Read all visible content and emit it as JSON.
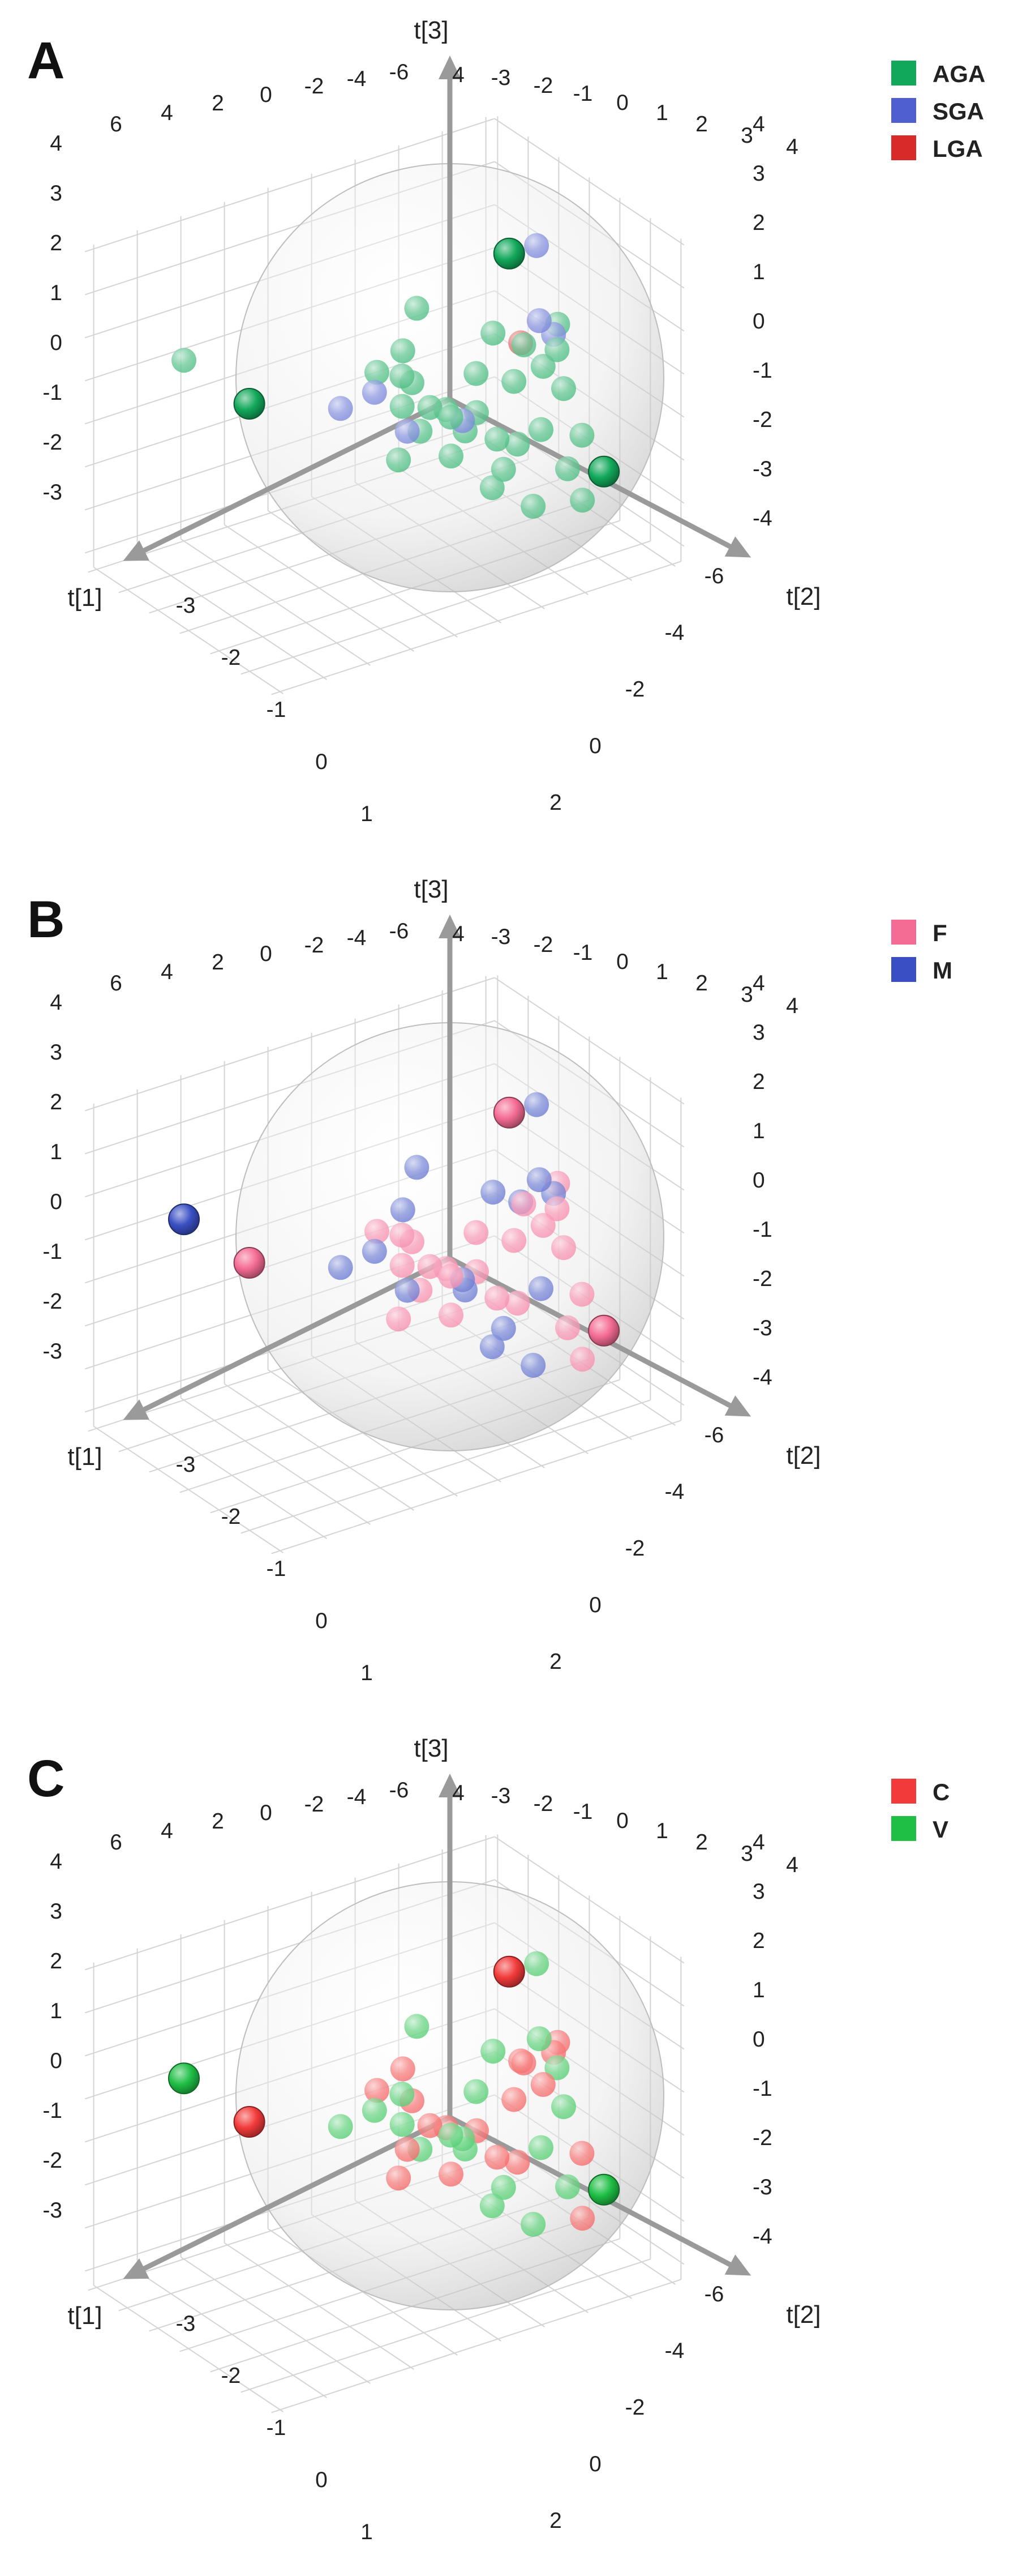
{
  "chart_data": [
    {
      "type": "scatter",
      "panel_letter": "A",
      "projection": "3d",
      "axes": {
        "x": "t[1]",
        "y": "t[2]",
        "z": "t[3]"
      },
      "xlim": [
        -3,
        6
      ],
      "ylim": [
        -6,
        6
      ],
      "zlim": [
        -3,
        4
      ],
      "grid": true,
      "legend": {
        "position": "top-right",
        "entries": [
          "AGA",
          "SGA",
          "LGA"
        ]
      },
      "series": [
        {
          "name": "AGA",
          "color": "#12a85a",
          "points": [
            [
              4.0,
              -6.0,
              0.8
            ],
            [
              1.5,
              -0.5,
              1.0
            ],
            [
              0.8,
              -0.2,
              0.6
            ],
            [
              1.2,
              0.3,
              0.3
            ],
            [
              0.6,
              0.4,
              0.1
            ],
            [
              1.0,
              0.9,
              -0.2
            ],
            [
              0.3,
              0.6,
              0.0
            ],
            [
              0.0,
              1.0,
              -0.5
            ],
            [
              -0.4,
              0.6,
              -0.3
            ],
            [
              0.5,
              1.5,
              -0.8
            ],
            [
              -0.8,
              0.8,
              -1.0
            ],
            [
              -1.2,
              1.0,
              -1.2
            ],
            [
              -0.6,
              1.8,
              -1.4
            ],
            [
              -1.6,
              1.4,
              -0.9
            ],
            [
              -2.0,
              0.4,
              0.2
            ],
            [
              -2.4,
              0.6,
              -0.4
            ],
            [
              -1.8,
              -0.3,
              0.6
            ],
            [
              -2.6,
              -0.4,
              0.2
            ],
            [
              -2.0,
              2.0,
              -1.8
            ],
            [
              -1.0,
              2.6,
              -2.2
            ],
            [
              -3.0,
              -1.5,
              0.4
            ],
            [
              0.8,
              -0.8,
              1.2
            ],
            [
              1.6,
              1.2,
              -0.6
            ],
            [
              -2.2,
              2.4,
              -2.5
            ],
            [
              0.2,
              -1.6,
              1.8
            ],
            [
              -0.6,
              0.0,
              0.4
            ],
            [
              0.4,
              1.2,
              0.0
            ],
            [
              1.1,
              0.0,
              0.9
            ],
            [
              -1.4,
              0.2,
              0.0
            ],
            [
              -0.2,
              2.2,
              -1.6
            ],
            [
              -2.4,
              1.8,
              -1.2
            ],
            [
              -1.2,
              -0.6,
              1.0
            ]
          ],
          "highlighted": [
            [
              -0.8,
              1.6,
              3.5
            ],
            [
              -1.5,
              5.8,
              -0.8
            ],
            [
              3.2,
              -4.0,
              0.0
            ]
          ]
        },
        {
          "name": "SGA",
          "color": "#4f5fcf",
          "points": [
            [
              1.8,
              0.2,
              0.8
            ],
            [
              0.2,
              1.4,
              -0.1
            ],
            [
              2.3,
              -0.6,
              0.4
            ],
            [
              1.4,
              1.2,
              0.0
            ],
            [
              -2.4,
              -1.0,
              0.8
            ],
            [
              -2.9,
              -2.6,
              2.0
            ],
            [
              -2.8,
              -1.2,
              0.3
            ]
          ]
        },
        {
          "name": "LGA",
          "color": "#d92a2a",
          "points": [
            [
              -1.8,
              -0.5,
              0.6
            ]
          ]
        }
      ]
    },
    {
      "type": "scatter",
      "panel_letter": "B",
      "projection": "3d",
      "axes": {
        "x": "t[1]",
        "y": "t[2]",
        "z": "t[3]"
      },
      "xlim": [
        -3,
        6
      ],
      "ylim": [
        -6,
        6
      ],
      "zlim": [
        -3,
        4
      ],
      "grid": true,
      "legend": {
        "position": "top-right",
        "entries": [
          "F",
          "M"
        ]
      },
      "series": [
        {
          "name": "F",
          "color": "#f46b93",
          "points": [
            [
              1.5,
              -0.5,
              1.0
            ],
            [
              0.8,
              -0.2,
              0.6
            ],
            [
              1.2,
              0.3,
              0.3
            ],
            [
              0.6,
              0.4,
              0.1
            ],
            [
              1.0,
              0.9,
              -0.2
            ],
            [
              0.3,
              0.6,
              0.0
            ],
            [
              -0.4,
              0.6,
              -0.3
            ],
            [
              0.5,
              1.5,
              -0.8
            ],
            [
              -0.8,
              0.8,
              -1.0
            ],
            [
              -1.2,
              1.0,
              -1.2
            ],
            [
              -2.0,
              0.4,
              0.2
            ],
            [
              -2.4,
              0.6,
              -0.4
            ],
            [
              -1.8,
              -0.3,
              0.6
            ],
            [
              -2.6,
              -0.4,
              0.2
            ],
            [
              -2.0,
              2.0,
              -1.8
            ],
            [
              -3.0,
              -1.5,
              0.4
            ],
            [
              1.6,
              1.2,
              -0.6
            ],
            [
              -2.2,
              2.4,
              -2.5
            ],
            [
              -0.6,
              0.0,
              0.4
            ],
            [
              0.4,
              1.2,
              0.0
            ],
            [
              1.1,
              0.0,
              0.9
            ],
            [
              -1.4,
              0.2,
              0.0
            ],
            [
              -2.4,
              1.8,
              -1.2
            ]
          ],
          "highlighted": [
            [
              -0.8,
              1.6,
              3.5
            ],
            [
              -1.5,
              5.8,
              -0.8
            ],
            [
              3.2,
              -4.0,
              0.0
            ]
          ]
        },
        {
          "name": "M",
          "color": "#3a4fc4",
          "points": [
            [
              0.0,
              1.0,
              -0.5
            ],
            [
              -0.6,
              1.8,
              -1.4
            ],
            [
              -1.6,
              1.4,
              -0.9
            ],
            [
              -1.0,
              2.6,
              -2.2
            ],
            [
              0.8,
              -0.8,
              1.2
            ],
            [
              0.2,
              -1.6,
              1.8
            ],
            [
              -0.2,
              2.2,
              -1.6
            ],
            [
              -1.2,
              -0.6,
              1.0
            ],
            [
              1.8,
              0.2,
              0.8
            ],
            [
              0.2,
              1.4,
              -0.1
            ],
            [
              2.3,
              -0.6,
              0.4
            ],
            [
              1.4,
              1.2,
              0.0
            ],
            [
              -2.4,
              -1.0,
              0.8
            ],
            [
              -2.9,
              -2.6,
              2.0
            ],
            [
              -2.8,
              -1.2,
              0.3
            ],
            [
              -1.8,
              -0.5,
              0.6
            ]
          ],
          "highlighted": [
            [
              4.0,
              -6.0,
              0.8
            ]
          ]
        }
      ]
    },
    {
      "type": "scatter",
      "panel_letter": "C",
      "projection": "3d",
      "axes": {
        "x": "t[1]",
        "y": "t[2]",
        "z": "t[3]"
      },
      "xlim": [
        -3,
        6
      ],
      "ylim": [
        -6,
        6
      ],
      "zlim": [
        -3,
        4
      ],
      "grid": true,
      "legend": {
        "position": "top-right",
        "entries": [
          "C",
          "V"
        ]
      },
      "series": [
        {
          "name": "C",
          "color": "#f23a3a",
          "points": [
            [
              1.5,
              -0.5,
              1.0
            ],
            [
              0.8,
              -0.2,
              0.6
            ],
            [
              0.6,
              0.4,
              0.1
            ],
            [
              0.3,
              0.6,
              0.0
            ],
            [
              -0.4,
              0.6,
              -0.3
            ],
            [
              0.5,
              1.5,
              -0.8
            ],
            [
              -0.8,
              0.8,
              -1.0
            ],
            [
              -1.2,
              1.0,
              -1.2
            ],
            [
              -2.0,
              0.4,
              0.2
            ],
            [
              -1.8,
              -0.3,
              0.6
            ],
            [
              -3.0,
              -1.5,
              0.4
            ],
            [
              0.8,
              -0.8,
              1.2
            ],
            [
              1.6,
              1.2,
              -0.6
            ],
            [
              -2.2,
              2.4,
              -2.5
            ],
            [
              -1.4,
              0.2,
              0.0
            ],
            [
              -2.4,
              1.8,
              -1.2
            ],
            [
              1.4,
              1.2,
              0.0
            ],
            [
              -1.8,
              -0.5,
              0.6
            ],
            [
              -2.8,
              -1.2,
              0.3
            ]
          ],
          "highlighted": [
            [
              -0.8,
              1.6,
              3.5
            ],
            [
              3.2,
              -4.0,
              0.0
            ]
          ]
        },
        {
          "name": "V",
          "color": "#1fbf45",
          "points": [
            [
              1.2,
              0.3,
              0.3
            ],
            [
              1.0,
              0.9,
              -0.2
            ],
            [
              0.0,
              1.0,
              -0.5
            ],
            [
              -0.6,
              1.8,
              -1.4
            ],
            [
              -1.6,
              1.4,
              -0.9
            ],
            [
              -2.4,
              0.6,
              -0.4
            ],
            [
              -2.6,
              -0.4,
              0.2
            ],
            [
              -2.0,
              2.0,
              -1.8
            ],
            [
              -1.0,
              2.6,
              -2.2
            ],
            [
              0.2,
              -1.6,
              1.8
            ],
            [
              -0.6,
              0.0,
              0.4
            ],
            [
              0.4,
              1.2,
              0.0
            ],
            [
              1.1,
              0.0,
              0.9
            ],
            [
              -0.2,
              2.2,
              -1.6
            ],
            [
              -1.2,
              -0.6,
              1.0
            ],
            [
              1.8,
              0.2,
              0.8
            ],
            [
              0.2,
              1.4,
              -0.1
            ],
            [
              2.3,
              -0.6,
              0.4
            ],
            [
              -2.4,
              -1.0,
              0.8
            ],
            [
              -2.9,
              -2.6,
              2.0
            ]
          ],
          "highlighted": [
            [
              4.0,
              -6.0,
              0.8
            ],
            [
              -1.5,
              5.8,
              -0.8
            ]
          ]
        }
      ]
    }
  ],
  "ticks": {
    "back_top": [
      "6",
      "4",
      "2",
      "0",
      "-2",
      "-4",
      "-6",
      "4",
      "-3",
      "-2",
      "-1",
      "0",
      "1",
      "2",
      "3",
      "4"
    ],
    "left_z": [
      "4",
      "3",
      "2",
      "1",
      "0",
      "-1",
      "-2",
      "-3"
    ],
    "right_z": [
      "4",
      "3",
      "2",
      "1",
      "0",
      "-1",
      "-2",
      "-3",
      "-4"
    ],
    "t1_axis": [
      "-3",
      "-2",
      "-1",
      "0",
      "1",
      "2",
      "3",
      "4"
    ],
    "t2_axis": [
      "-6",
      "-4",
      "-2",
      "0",
      "2",
      "4",
      "6"
    ]
  },
  "colors": {
    "axis": "#9a9a9a",
    "grid": "#d4d4d4",
    "sphere": "#bdbdbd"
  }
}
